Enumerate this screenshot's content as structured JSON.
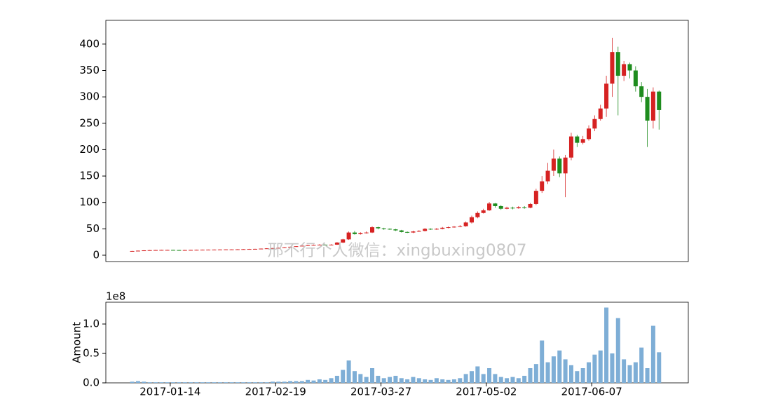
{
  "chart_data": [
    {
      "type": "candlestick",
      "watermark": "邢不行个人微信：xingbuxing0807",
      "up_color": "#d62222",
      "down_color": "#1e8c1e",
      "xlim": [
        "2016-12-23",
        "2017-07-10"
      ],
      "ylim": [
        -12,
        445
      ],
      "yticks": [
        0,
        50,
        100,
        150,
        200,
        250,
        300,
        350,
        400
      ],
      "x": [
        "2017-01-01",
        "2017-01-03",
        "2017-01-05",
        "2017-01-07",
        "2017-01-09",
        "2017-01-11",
        "2017-01-13",
        "2017-01-15",
        "2017-01-17",
        "2017-01-19",
        "2017-01-21",
        "2017-01-23",
        "2017-01-25",
        "2017-01-27",
        "2017-01-29",
        "2017-01-31",
        "2017-02-02",
        "2017-02-04",
        "2017-02-06",
        "2017-02-08",
        "2017-02-10",
        "2017-02-12",
        "2017-02-14",
        "2017-02-16",
        "2017-02-18",
        "2017-02-20",
        "2017-02-22",
        "2017-02-24",
        "2017-02-26",
        "2017-02-28",
        "2017-03-02",
        "2017-03-04",
        "2017-03-06",
        "2017-03-08",
        "2017-03-10",
        "2017-03-12",
        "2017-03-14",
        "2017-03-16",
        "2017-03-18",
        "2017-03-20",
        "2017-03-22",
        "2017-03-24",
        "2017-03-26",
        "2017-03-28",
        "2017-03-30",
        "2017-04-01",
        "2017-04-03",
        "2017-04-05",
        "2017-04-07",
        "2017-04-09",
        "2017-04-11",
        "2017-04-13",
        "2017-04-15",
        "2017-04-17",
        "2017-04-19",
        "2017-04-21",
        "2017-04-23",
        "2017-04-25",
        "2017-04-27",
        "2017-04-29",
        "2017-05-01",
        "2017-05-03",
        "2017-05-05",
        "2017-05-07",
        "2017-05-09",
        "2017-05-11",
        "2017-05-13",
        "2017-05-15",
        "2017-05-17",
        "2017-05-19",
        "2017-05-21",
        "2017-05-23",
        "2017-05-25",
        "2017-05-27",
        "2017-05-29",
        "2017-05-31",
        "2017-06-02",
        "2017-06-04",
        "2017-06-06",
        "2017-06-08",
        "2017-06-10",
        "2017-06-12",
        "2017-06-14",
        "2017-06-16",
        "2017-06-18",
        "2017-06-20",
        "2017-06-22",
        "2017-06-24",
        "2017-06-26",
        "2017-06-28",
        "2017-06-30"
      ],
      "open": [
        7.8,
        8,
        8.6,
        9.2,
        9.6,
        9.8,
        10,
        10,
        9.8,
        9.6,
        9.8,
        10,
        10.2,
        10.4,
        10.5,
        10.6,
        10.8,
        11,
        11,
        11.2,
        11.5,
        11.8,
        12,
        12.5,
        13,
        13.5,
        14,
        15,
        16,
        17,
        18,
        19,
        19.5,
        20,
        19,
        20,
        24,
        30,
        43,
        40,
        42,
        43,
        53,
        51,
        50,
        49,
        47,
        44,
        43,
        45,
        46,
        50,
        49,
        50,
        52,
        53,
        54,
        55,
        62,
        72,
        80,
        85,
        98,
        93,
        88,
        90,
        89,
        91,
        90,
        97,
        122,
        140,
        160,
        183,
        155,
        185,
        225,
        213,
        220,
        240,
        258,
        278,
        325,
        385,
        340,
        362,
        350,
        320,
        300,
        255,
        310
      ],
      "high": [
        8.3,
        8.9,
        9.5,
        9.9,
        10.1,
        10.3,
        10.3,
        10.3,
        10.1,
        10.1,
        10.3,
        10.5,
        10.7,
        10.8,
        10.9,
        11.1,
        11.3,
        11.3,
        11.5,
        11.8,
        12.1,
        12.3,
        12.8,
        13.3,
        13.8,
        14.3,
        15.3,
        16.3,
        17.3,
        18.3,
        19.8,
        20.2,
        20.8,
        20.5,
        20.8,
        25,
        31,
        45,
        46,
        43.5,
        45,
        55,
        54,
        52,
        51,
        50,
        48,
        45,
        46.5,
        47.5,
        51.5,
        51,
        51.5,
        53.5,
        54.5,
        55.5,
        57,
        64,
        75,
        83,
        88,
        101,
        99,
        95,
        92,
        92,
        93,
        93,
        99,
        126,
        150,
        175,
        200,
        187,
        190,
        232,
        228,
        226,
        246,
        265,
        285,
        340,
        412,
        395,
        368,
        365,
        358,
        328,
        315,
        318,
        312
      ],
      "low": [
        7.5,
        7.7,
        8.3,
        8.9,
        9.3,
        9.5,
        9.7,
        9.5,
        9.3,
        9.3,
        9.5,
        9.7,
        9.9,
        10.1,
        10.2,
        10.3,
        10.5,
        10.7,
        10.7,
        10.9,
        11.2,
        11.5,
        11.7,
        12.2,
        12.7,
        13.2,
        13.7,
        14.7,
        15.7,
        16.7,
        17.5,
        18.5,
        19,
        18.5,
        18.5,
        19.5,
        23,
        29,
        39,
        39,
        41,
        42,
        49,
        48,
        48,
        46,
        43,
        42,
        42,
        44,
        45,
        48,
        48,
        49,
        51,
        52,
        53,
        54,
        60,
        70,
        79,
        84,
        90,
        86,
        87,
        87,
        88,
        88,
        89,
        95,
        118,
        135,
        150,
        148,
        110,
        180,
        205,
        210,
        217,
        235,
        255,
        262,
        300,
        265,
        330,
        335,
        310,
        290,
        205,
        240,
        238
      ],
      "close": [
        8,
        8.6,
        9.2,
        9.6,
        9.8,
        10,
        10,
        9.8,
        9.6,
        9.8,
        10,
        10.2,
        10.4,
        10.5,
        10.6,
        10.8,
        11,
        11,
        11.2,
        11.5,
        11.8,
        12,
        12.5,
        13,
        13.5,
        14,
        15,
        16,
        17,
        18,
        19,
        19.5,
        20,
        19,
        20,
        24,
        30,
        43,
        40,
        42,
        43,
        53,
        51,
        50,
        49,
        47,
        44,
        43,
        45,
        46,
        50,
        49,
        50,
        52,
        53,
        54,
        55,
        62,
        72,
        80,
        85,
        98,
        93,
        88,
        90,
        89,
        91,
        90,
        97,
        122,
        140,
        160,
        183,
        155,
        185,
        225,
        213,
        220,
        240,
        258,
        278,
        325,
        385,
        340,
        362,
        350,
        320,
        300,
        255,
        310,
        275
      ]
    },
    {
      "type": "bar",
      "ylabel": "Amount",
      "offset_text": "1e8",
      "color": "#7eaed6",
      "xlim": [
        "2016-12-23",
        "2017-07-10"
      ],
      "xticks": [
        "2017-01-14",
        "2017-02-19",
        "2017-03-27",
        "2017-05-02",
        "2017-06-07"
      ],
      "ylim": [
        0,
        137000000
      ],
      "yticks": [
        {
          "value": 0,
          "label": "0.0"
        },
        {
          "value": 50000000,
          "label": "0.5"
        },
        {
          "value": 100000000,
          "label": "1.0"
        }
      ],
      "x": [
        "2017-01-01",
        "2017-01-03",
        "2017-01-05",
        "2017-01-07",
        "2017-01-09",
        "2017-01-11",
        "2017-01-13",
        "2017-01-15",
        "2017-01-17",
        "2017-01-19",
        "2017-01-21",
        "2017-01-23",
        "2017-01-25",
        "2017-01-27",
        "2017-01-29",
        "2017-01-31",
        "2017-02-02",
        "2017-02-04",
        "2017-02-06",
        "2017-02-08",
        "2017-02-10",
        "2017-02-12",
        "2017-02-14",
        "2017-02-16",
        "2017-02-18",
        "2017-02-20",
        "2017-02-22",
        "2017-02-24",
        "2017-02-26",
        "2017-02-28",
        "2017-03-02",
        "2017-03-04",
        "2017-03-06",
        "2017-03-08",
        "2017-03-10",
        "2017-03-12",
        "2017-03-14",
        "2017-03-16",
        "2017-03-18",
        "2017-03-20",
        "2017-03-22",
        "2017-03-24",
        "2017-03-26",
        "2017-03-28",
        "2017-03-30",
        "2017-04-01",
        "2017-04-03",
        "2017-04-05",
        "2017-04-07",
        "2017-04-09",
        "2017-04-11",
        "2017-04-13",
        "2017-04-15",
        "2017-04-17",
        "2017-04-19",
        "2017-04-21",
        "2017-04-23",
        "2017-04-25",
        "2017-04-27",
        "2017-04-29",
        "2017-05-01",
        "2017-05-03",
        "2017-05-05",
        "2017-05-07",
        "2017-05-09",
        "2017-05-11",
        "2017-05-13",
        "2017-05-15",
        "2017-05-17",
        "2017-05-19",
        "2017-05-21",
        "2017-05-23",
        "2017-05-25",
        "2017-05-27",
        "2017-05-29",
        "2017-05-31",
        "2017-06-02",
        "2017-06-04",
        "2017-06-06",
        "2017-06-08",
        "2017-06-10",
        "2017-06-12",
        "2017-06-14",
        "2017-06-16",
        "2017-06-18",
        "2017-06-20",
        "2017-06-22",
        "2017-06-24",
        "2017-06-26",
        "2017-06-28",
        "2017-06-30"
      ],
      "values": [
        2000000,
        3000000,
        2000000,
        1000000,
        1000000,
        1000000,
        1000000,
        1000000,
        1000000,
        1000000,
        1000000,
        1000000,
        1000000,
        1000000,
        1000000,
        1000000,
        1000000,
        1000000,
        1000000,
        1000000,
        1000000,
        1000000,
        1000000,
        1000000,
        2000000,
        2000000,
        2000000,
        3000000,
        3000000,
        3000000,
        5000000,
        4000000,
        6000000,
        5000000,
        8000000,
        12000000,
        22000000,
        38000000,
        20000000,
        15000000,
        10000000,
        25000000,
        12000000,
        8000000,
        10000000,
        12000000,
        8000000,
        6000000,
        10000000,
        8000000,
        6000000,
        5000000,
        8000000,
        6000000,
        5000000,
        6000000,
        8000000,
        15000000,
        20000000,
        28000000,
        15000000,
        25000000,
        15000000,
        10000000,
        8000000,
        10000000,
        8000000,
        12000000,
        25000000,
        32000000,
        72000000,
        35000000,
        45000000,
        55000000,
        40000000,
        30000000,
        20000000,
        25000000,
        35000000,
        48000000,
        55000000,
        128000000,
        50000000,
        110000000,
        40000000,
        30000000,
        35000000,
        60000000,
        25000000,
        97000000,
        52000000
      ]
    }
  ]
}
